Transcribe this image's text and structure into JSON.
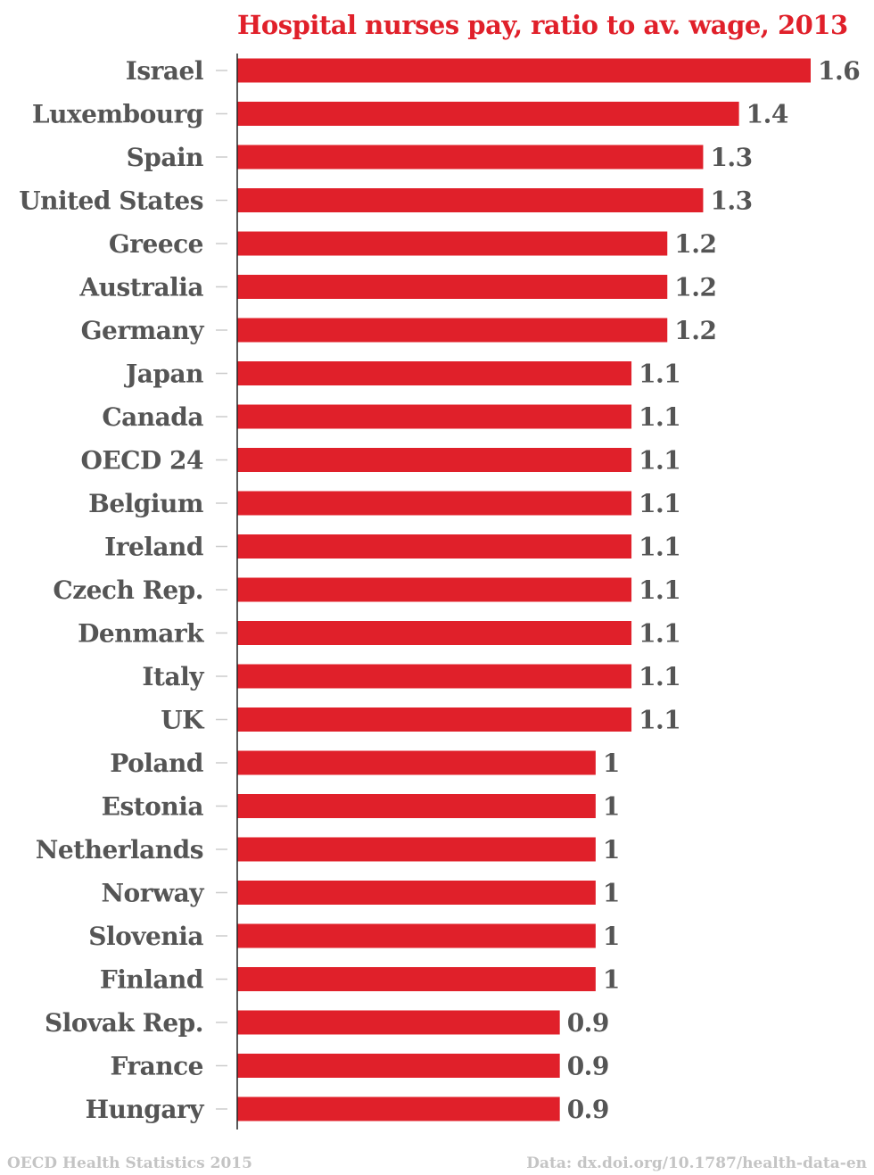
{
  "chart_data": {
    "type": "bar",
    "orientation": "horizontal",
    "title": "Hospital nurses pay, ratio to av. wage, 2013",
    "categories": [
      "Israel",
      "Luxembourg",
      "Spain",
      "United States",
      "Greece",
      "Australia",
      "Germany",
      "Japan",
      "Canada",
      "OECD 24",
      "Belgium",
      "Ireland",
      "Czech Rep.",
      "Denmark",
      "Italy",
      "UK",
      "Poland",
      "Estonia",
      "Netherlands",
      "Norway",
      "Slovenia",
      "Finland",
      "Slovak Rep.",
      "France",
      "Hungary"
    ],
    "values": [
      1.6,
      1.4,
      1.3,
      1.3,
      1.2,
      1.2,
      1.2,
      1.1,
      1.1,
      1.1,
      1.1,
      1.1,
      1.1,
      1.1,
      1.1,
      1.1,
      1,
      1,
      1,
      1,
      1,
      1,
      0.9,
      0.9,
      0.9
    ],
    "value_labels": [
      "1.6",
      "1.4",
      "1.3",
      "1.3",
      "1.2",
      "1.2",
      "1.2",
      "1.1",
      "1.1",
      "1.1",
      "1.1",
      "1.1",
      "1.1",
      "1.1",
      "1.1",
      "1.1",
      "1",
      "1",
      "1",
      "1",
      "1",
      "1",
      "0.9",
      "0.9",
      "0.9"
    ],
    "xlim": [
      0,
      1.6
    ],
    "xlabel": "",
    "ylabel": "",
    "grid": false,
    "legend": "none",
    "bar_color": "#e0202a",
    "text_color": "#555555"
  },
  "footer": {
    "source": "OECD Health Statistics 2015",
    "data_ref": "Data: dx.doi.org/10.1787/health-data-en"
  },
  "colors": {
    "title": "#e0202a",
    "footer": "#c4c4c4",
    "axis": "#222222",
    "tick": "#cccccc"
  }
}
